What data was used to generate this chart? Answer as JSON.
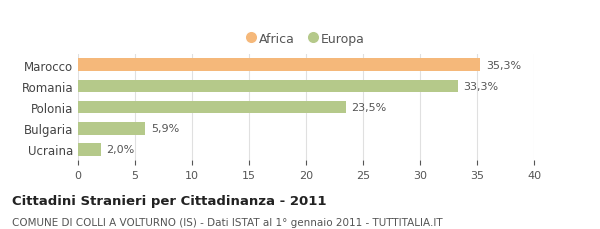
{
  "categories": [
    "Marocco",
    "Romania",
    "Polonia",
    "Bulgaria",
    "Ucraina"
  ],
  "values": [
    35.3,
    33.3,
    23.5,
    5.9,
    2.0
  ],
  "labels": [
    "35,3%",
    "33,3%",
    "23,5%",
    "5,9%",
    "2,0%"
  ],
  "colors": [
    "#f5b87a",
    "#b5c98a",
    "#b5c98a",
    "#b5c98a",
    "#b5c98a"
  ],
  "legend_labels": [
    "Africa",
    "Europa"
  ],
  "legend_colors": [
    "#f5b87a",
    "#b5c98a"
  ],
  "xlim": [
    0,
    40
  ],
  "xticks": [
    0,
    5,
    10,
    15,
    20,
    25,
    30,
    35,
    40
  ],
  "title_bold": "Cittadini Stranieri per Cittadinanza - 2011",
  "subtitle": "COMUNE DI COLLI A VOLTURNO (IS) - Dati ISTAT al 1° gennaio 2011 - TUTTITALIA.IT",
  "bg_color": "#ffffff",
  "grid_color": "#e0e0e0",
  "bar_height": 0.6,
  "title_fontsize": 9.5,
  "subtitle_fontsize": 7.5,
  "label_fontsize": 8,
  "tick_fontsize": 8,
  "ytick_fontsize": 8.5
}
